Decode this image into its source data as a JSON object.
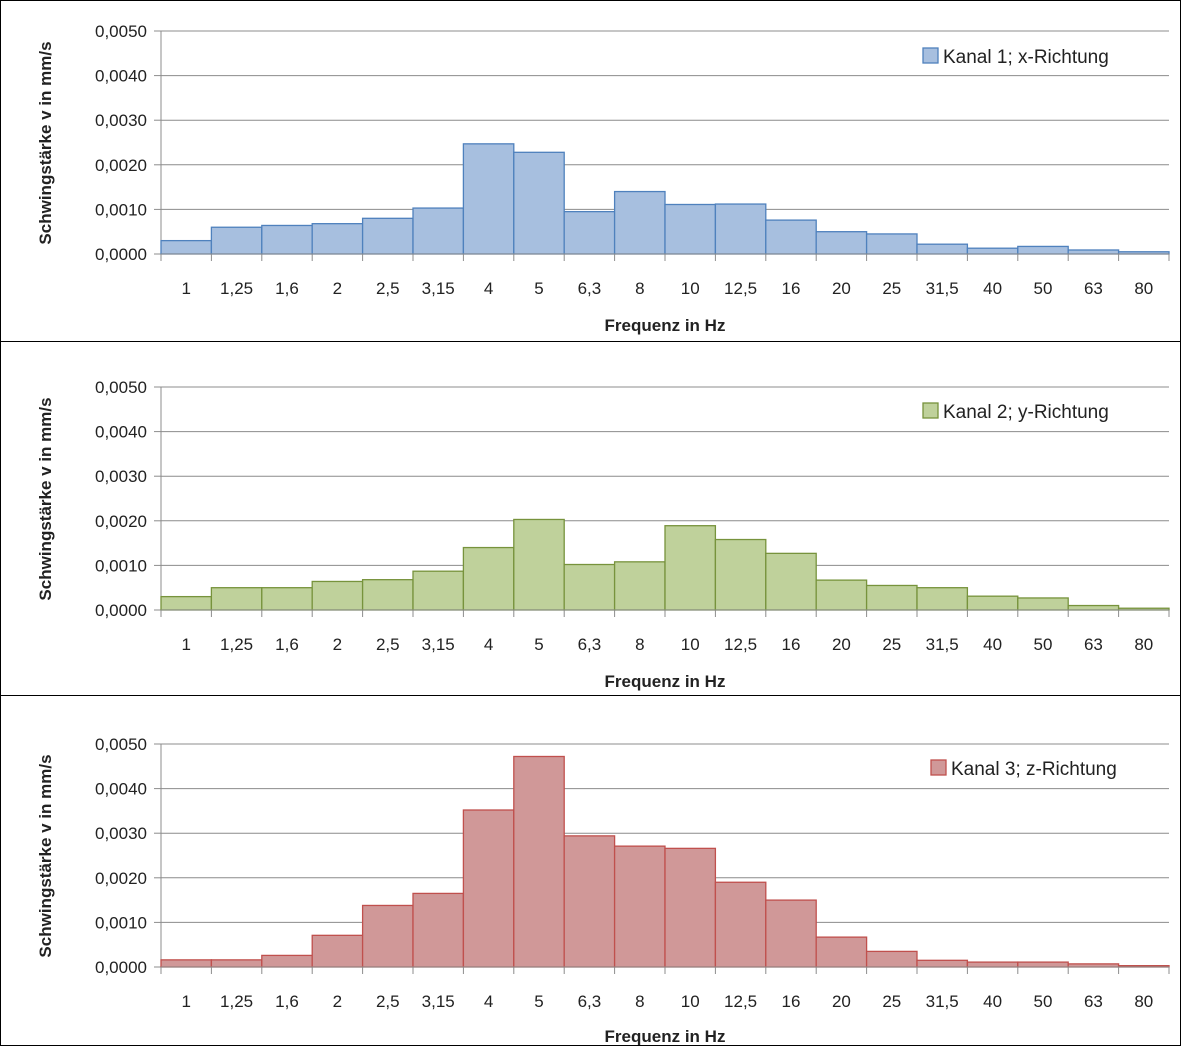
{
  "chart_data": [
    {
      "type": "bar",
      "categories": [
        "1",
        "1,25",
        "1,6",
        "2",
        "2,5",
        "3,15",
        "4",
        "5",
        "6,3",
        "8",
        "10",
        "12,5",
        "16",
        "20",
        "25",
        "31,5",
        "40",
        "50",
        "63",
        "80"
      ],
      "series": [
        {
          "name": "Kanal 1; x-Richtung",
          "values": [
            0.0003,
            0.0006,
            0.00064,
            0.00068,
            0.0008,
            0.00103,
            0.00247,
            0.00228,
            0.00095,
            0.0014,
            0.00111,
            0.00112,
            0.00076,
            0.0005,
            0.00045,
            0.00022,
            0.00013,
            0.00017,
            9e-05,
            5e-05
          ]
        }
      ],
      "xlabel": "Frequenz in Hz",
      "ylabel": "Schwingstärke v in mm/s",
      "ylim": [
        0,
        0.005
      ],
      "yticks": [
        "0,0000",
        "0,0010",
        "0,0020",
        "0,0030",
        "0,0040",
        "0,0050"
      ],
      "grid": true,
      "legend": "top-right",
      "colors": {
        "fill": "#a7bfdf",
        "stroke": "#4f81bd"
      }
    },
    {
      "type": "bar",
      "categories": [
        "1",
        "1,25",
        "1,6",
        "2",
        "2,5",
        "3,15",
        "4",
        "5",
        "6,3",
        "8",
        "10",
        "12,5",
        "16",
        "20",
        "25",
        "31,5",
        "40",
        "50",
        "63",
        "80"
      ],
      "series": [
        {
          "name": "Kanal 2; y-Richtung",
          "values": [
            0.0003,
            0.0005,
            0.0005,
            0.00064,
            0.00068,
            0.00087,
            0.0014,
            0.00203,
            0.00102,
            0.00108,
            0.00189,
            0.00158,
            0.00127,
            0.00067,
            0.00055,
            0.0005,
            0.00031,
            0.00027,
            0.0001,
            4e-05
          ]
        }
      ],
      "xlabel": "Frequenz in Hz",
      "ylabel": "Schwingstärke v in mm/s",
      "ylim": [
        0,
        0.005
      ],
      "yticks": [
        "0,0000",
        "0,0010",
        "0,0020",
        "0,0030",
        "0,0040",
        "0,0050"
      ],
      "grid": true,
      "legend": "top-right",
      "colors": {
        "fill": "#bfd19b",
        "stroke": "#77933c"
      }
    },
    {
      "type": "bar",
      "categories": [
        "1",
        "1,25",
        "1,6",
        "2",
        "2,5",
        "3,15",
        "4",
        "5",
        "6,3",
        "8",
        "10",
        "12,5",
        "16",
        "20",
        "25",
        "31,5",
        "40",
        "50",
        "63",
        "80"
      ],
      "series": [
        {
          "name": "Kanal 3; z-Richtung",
          "values": [
            0.00016,
            0.00016,
            0.00026,
            0.00071,
            0.00138,
            0.00165,
            0.00352,
            0.00472,
            0.00294,
            0.00271,
            0.00266,
            0.0019,
            0.0015,
            0.00067,
            0.00035,
            0.00015,
            0.00011,
            0.00011,
            7e-05,
            3e-05
          ]
        }
      ],
      "xlabel": "Frequenz in Hz",
      "ylabel": "Schwingstärke v in mm/s",
      "ylim": [
        0,
        0.005
      ],
      "yticks": [
        "0,0000",
        "0,0010",
        "0,0020",
        "0,0030",
        "0,0040",
        "0,0050"
      ],
      "grid": true,
      "legend": "top-right",
      "colors": {
        "fill": "#d09898",
        "stroke": "#c0504d"
      }
    }
  ]
}
